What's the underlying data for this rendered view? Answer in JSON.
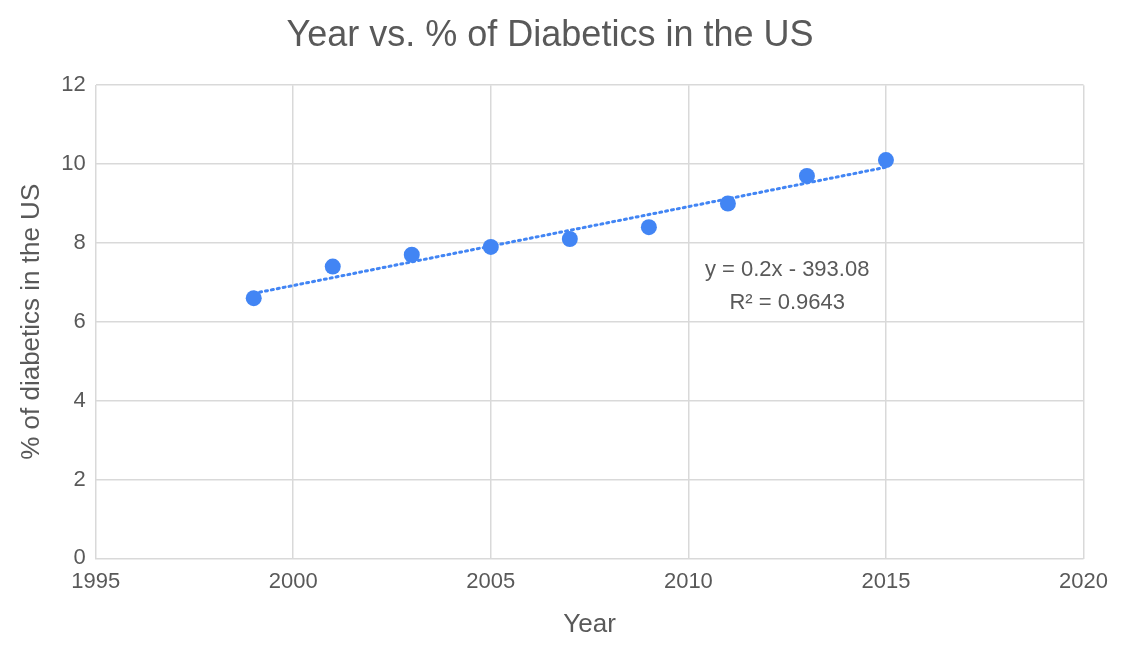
{
  "chart_data": {
    "type": "scatter",
    "title": "Year vs. % of Diabetics in the US",
    "xlabel": "Year",
    "ylabel": "% of diabetics in the US",
    "x": [
      1999,
      2001,
      2003,
      2005,
      2007,
      2009,
      2011,
      2013,
      2015
    ],
    "series": [
      {
        "color": "#4285f4",
        "marker": "circle",
        "values": [
          6.6,
          7.4,
          7.7,
          7.9,
          8.1,
          8.4,
          9.0,
          9.7,
          10.1
        ]
      },
      {
        "type": "line",
        "color": "#4285f4",
        "line_style": "dotted",
        "marker": "none",
        "x": [
          1999,
          2015
        ],
        "values": [
          6.72,
          9.92
        ]
      }
    ],
    "xlim": [
      1995,
      2020
    ],
    "xticks": [
      1995,
      2000,
      2005,
      2010,
      2015,
      2020
    ],
    "ylim": [
      0,
      12
    ],
    "yticks": [
      0,
      2,
      4,
      6,
      8,
      10,
      12
    ],
    "grid": true,
    "legend": false,
    "annotations": [
      "y = 0.2x - 393.08",
      "R² = 0.9643"
    ]
  }
}
